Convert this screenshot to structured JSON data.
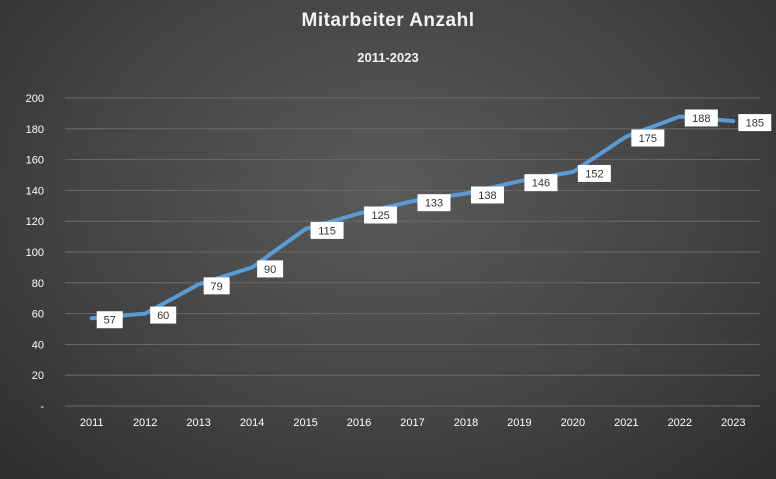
{
  "chart_data": {
    "type": "line",
    "title": "Mitarbeiter Anzahl",
    "subtitle": "2011-2023",
    "categories": [
      "2011",
      "2012",
      "2013",
      "2014",
      "2015",
      "2016",
      "2017",
      "2018",
      "2019",
      "2020",
      "2021",
      "2022",
      "2023"
    ],
    "series": [
      {
        "values": [
          57,
          60,
          79,
          90,
          115,
          125,
          133,
          138,
          146,
          152,
          175,
          188,
          185
        ]
      }
    ],
    "ylim": [
      0,
      200
    ],
    "yticks": [
      0,
      20,
      40,
      60,
      80,
      100,
      120,
      140,
      160,
      180,
      200
    ],
    "ytick_labels": [
      "-",
      "20",
      "40",
      "60",
      "80",
      "100",
      "120",
      "140",
      "160",
      "180",
      "200"
    ],
    "grid": true,
    "legend": "none",
    "colors": {
      "line": "#5b9bd5",
      "grid": "#6a6a6a",
      "label_bg": "#ffffff"
    }
  }
}
